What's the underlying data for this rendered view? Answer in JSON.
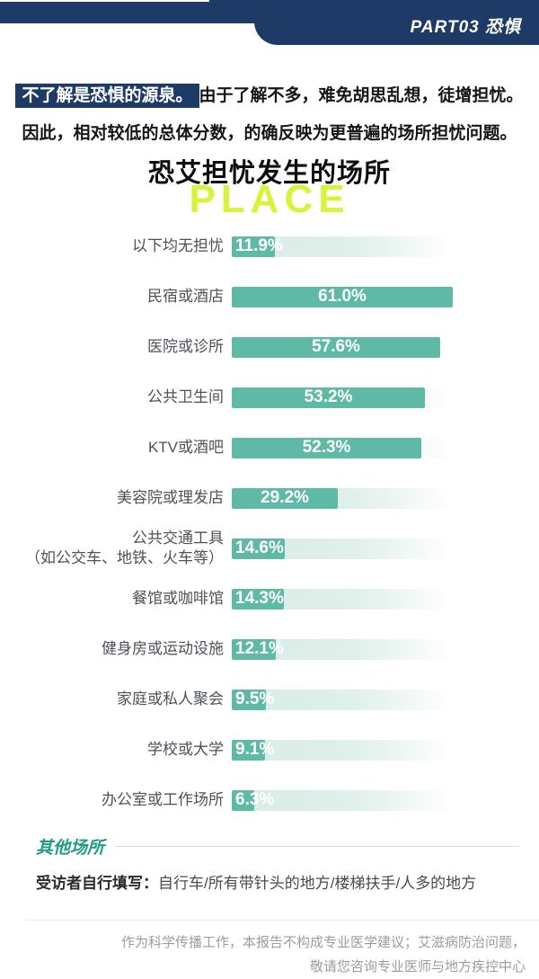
{
  "header": {
    "part_label": "PART03 恐惧"
  },
  "intro": {
    "highlight": "不了解是恐惧的源泉。",
    "line1_rest": "由于了解不多，难免胡思乱想，徒增担忧。",
    "line2": "因此，相对较低的总体分数，的确反映为更普遍的场所担忧问题。"
  },
  "chart": {
    "title": "恐艾担忧发生的场所",
    "watermark": "PLACE"
  },
  "chart_data": {
    "type": "bar",
    "orientation": "horizontal",
    "title": "恐艾担忧发生的场所",
    "unit": "%",
    "layout_hint": "bars normalized so the max value (61.0%) fills the full bar width; light mint track behind each bar fades to white on the right",
    "categories": [
      "以下均无担忧",
      "民宿或酒店",
      "医院或诊所",
      "公共卫生间",
      "KTV或酒吧",
      "美容院或理发店",
      "公共交通工具（如公交车、地铁、火车等）",
      "餐馆或咖啡馆",
      "健身房或运动设施",
      "家庭或私人聚会",
      "学校或大学",
      "办公室或工作场所"
    ],
    "values": [
      11.9,
      61.0,
      57.6,
      53.2,
      52.3,
      29.2,
      14.6,
      14.3,
      12.1,
      9.5,
      9.1,
      6.3
    ],
    "rows": [
      {
        "label": "以下均无担忧",
        "sublabel": "",
        "value": 11.9,
        "value_label": "11.9%"
      },
      {
        "label": "民宿或酒店",
        "sublabel": "",
        "value": 61.0,
        "value_label": "61.0%"
      },
      {
        "label": "医院或诊所",
        "sublabel": "",
        "value": 57.6,
        "value_label": "57.6%"
      },
      {
        "label": "公共卫生间",
        "sublabel": "",
        "value": 53.2,
        "value_label": "53.2%"
      },
      {
        "label": "KTV或酒吧",
        "sublabel": "",
        "value": 52.3,
        "value_label": "52.3%"
      },
      {
        "label": "美容院或理发店",
        "sublabel": "",
        "value": 29.2,
        "value_label": "29.2%"
      },
      {
        "label": "公共交通工具",
        "sublabel": "（如公交车、地铁、火车等）",
        "value": 14.6,
        "value_label": "14.6%"
      },
      {
        "label": "餐馆或咖啡馆",
        "sublabel": "",
        "value": 14.3,
        "value_label": "14.3%"
      },
      {
        "label": "健身房或运动设施",
        "sublabel": "",
        "value": 12.1,
        "value_label": "12.1%"
      },
      {
        "label": "家庭或私人聚会",
        "sublabel": "",
        "value": 9.5,
        "value_label": "9.5%"
      },
      {
        "label": "学校或大学",
        "sublabel": "",
        "value": 9.1,
        "value_label": "9.1%"
      },
      {
        "label": "办公室或工作场所",
        "sublabel": "",
        "value": 6.3,
        "value_label": "6.3%"
      }
    ]
  },
  "other_places": {
    "heading": "其他场所",
    "prefix": "受访者自行填写：",
    "content": "自行车/所有带针头的地方/楼梯扶手/人多的地方"
  },
  "footer": {
    "line1": "作为科学传播工作，本报告不构成专业医学建议；艾滋病防治问题，",
    "line2": "敬请您咨询专业医师与地方疾控中心"
  },
  "colors": {
    "navy": "#1e3a66",
    "bar_teal": "#5fbaa5",
    "track_mint": "#d9ece7",
    "accent_yellow": "#d9f23c",
    "other_teal": "#239a84"
  }
}
